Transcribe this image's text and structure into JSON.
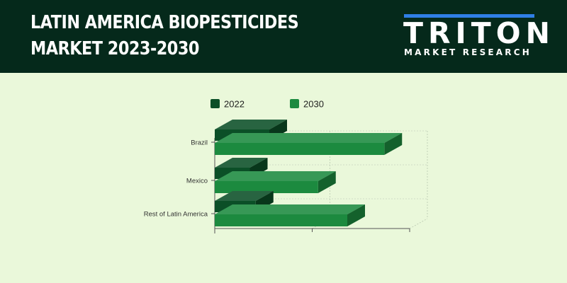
{
  "header": {
    "title_line1": "LATIN AMERICA BIOPESTICIDES",
    "title_line2": "MARKET 2023-2030",
    "logo_word": "TRITON",
    "logo_subtitle": "MARKET RESEARCH"
  },
  "colors": {
    "header_bg": "#05291b",
    "page_bg": "#eaf8da",
    "series_2022": "#0b4f27",
    "series_2030": "#1c8a3f",
    "logo_accent": "#2f7fe6"
  },
  "chart_data": {
    "type": "bar",
    "orientation": "horizontal",
    "style": "3d",
    "categories": [
      "Brazil",
      "Mexico",
      "Rest of Latin America"
    ],
    "series": [
      {
        "name": "2022",
        "values": [
          28,
          18,
          21
        ]
      },
      {
        "name": "2030",
        "values": [
          87,
          53,
          68
        ]
      }
    ],
    "xlim": [
      0,
      100
    ],
    "x_ticks_labeled": false,
    "grid": true,
    "legend": "top"
  }
}
